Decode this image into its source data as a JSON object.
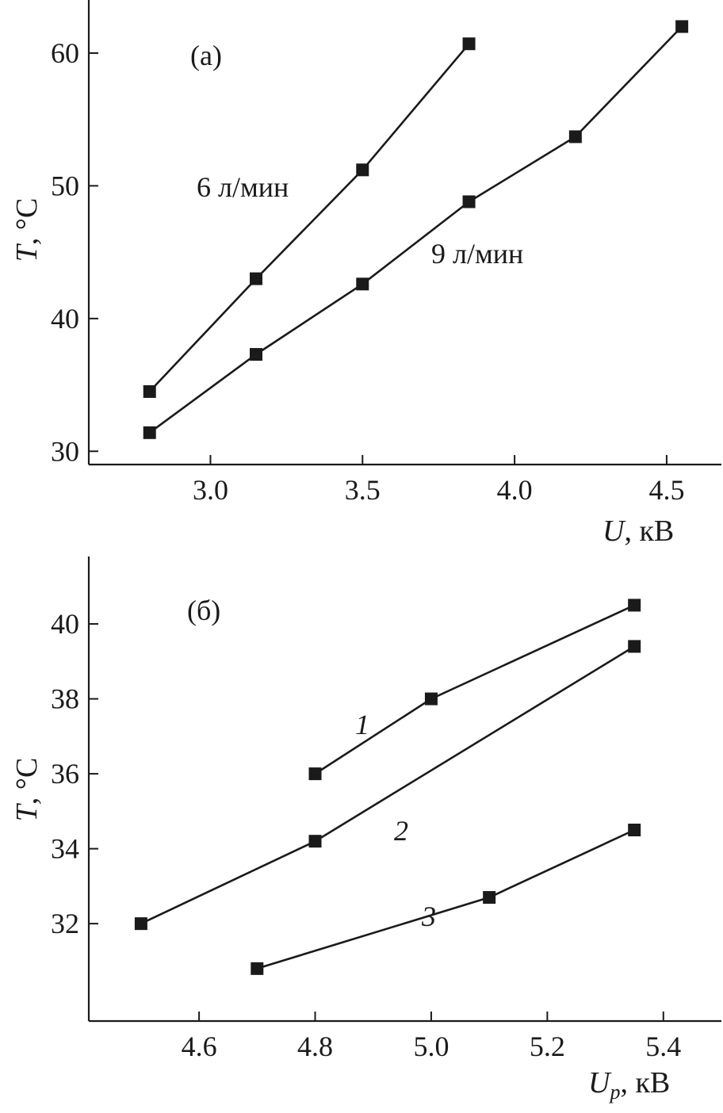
{
  "chart_data": [
    {
      "type": "line",
      "panel_label": "(а)",
      "xlabel": {
        "symbol": "U",
        "sub": "",
        "unit": ", кВ"
      },
      "ylabel": {
        "symbol": "T",
        "unit": ", °C"
      },
      "xlim": [
        2.6,
        4.68
      ],
      "ylim": [
        29,
        64
      ],
      "xticks": [
        3.0,
        3.5,
        4.0,
        4.5
      ],
      "xtick_labels": [
        "3.0",
        "3.5",
        "4.0",
        "4.5"
      ],
      "yticks": [
        30,
        40,
        50,
        60
      ],
      "ytick_labels": [
        "30",
        "40",
        "50",
        "60"
      ],
      "series": [
        {
          "name": "6 л/мин",
          "x": [
            2.8,
            3.15,
            3.5,
            3.85
          ],
          "y": [
            34.5,
            43.0,
            51.2,
            60.7
          ]
        },
        {
          "name": "9 л/мин",
          "x": [
            2.8,
            3.15,
            3.5,
            3.85,
            4.2,
            4.55
          ],
          "y": [
            31.4,
            37.3,
            42.6,
            48.8,
            53.7,
            62.0
          ]
        }
      ]
    },
    {
      "type": "line",
      "panel_label": "(б)",
      "xlabel": {
        "symbol": "U",
        "sub": "p",
        "unit": ", кВ"
      },
      "ylabel": {
        "symbol": "T",
        "unit": ", °C"
      },
      "xlim": [
        4.41,
        5.5
      ],
      "ylim": [
        29.4,
        41.8
      ],
      "xticks": [
        4.6,
        4.8,
        5.0,
        5.2,
        5.4
      ],
      "xtick_labels": [
        "4.6",
        "4.8",
        "5.0",
        "5.2",
        "5.4"
      ],
      "yticks": [
        32,
        34,
        36,
        38,
        40
      ],
      "ytick_labels": [
        "32",
        "34",
        "36",
        "38",
        "40"
      ],
      "series": [
        {
          "name": "1",
          "x": [
            4.8,
            5.0,
            5.35
          ],
          "y": [
            36.0,
            38.0,
            40.5
          ]
        },
        {
          "name": "2",
          "x": [
            4.5,
            4.8,
            5.35
          ],
          "y": [
            32.0,
            34.2,
            39.4
          ]
        },
        {
          "name": "3",
          "x": [
            4.7,
            5.1,
            5.35
          ],
          "y": [
            30.8,
            32.7,
            34.5
          ]
        }
      ]
    }
  ]
}
